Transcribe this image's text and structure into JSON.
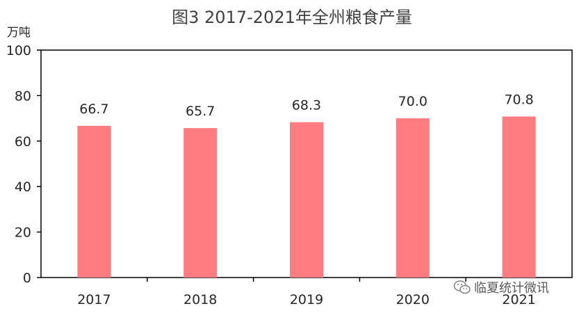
{
  "chart_data": {
    "type": "bar",
    "title": "图3  2017-2021年全州粮食产量",
    "ylabel": "万吨",
    "xlabel": "",
    "categories": [
      "2017",
      "2018",
      "2019",
      "2020",
      "2021"
    ],
    "values": [
      66.7,
      65.7,
      68.3,
      70.0,
      70.8
    ],
    "data_labels": [
      "66.7",
      "65.7",
      "68.3",
      "70.0",
      "70.8"
    ],
    "ylim": [
      0,
      100
    ],
    "yticks": [
      "0",
      "20",
      "40",
      "60",
      "80",
      "100"
    ],
    "grid": false,
    "legend": "none",
    "bar_color": "#FF7C80",
    "axis_color": "#000000"
  },
  "watermark": {
    "text": "临夏统计微讯",
    "icon": "wechat-icon"
  }
}
